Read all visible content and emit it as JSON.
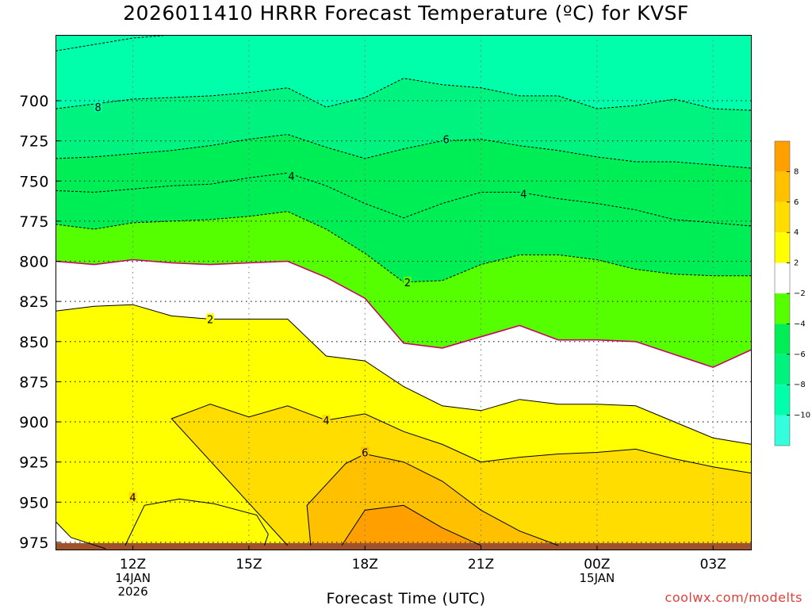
{
  "title": "2026011410 HRRR Forecast Temperature (ºC) for KVSF",
  "xlabel": "Forecast Time (UTC)",
  "watermark": "coolwx.com/modelts",
  "chart_data": {
    "type": "heatmap",
    "title": "2026011410 HRRR Forecast Temperature (ºC) for KVSF",
    "xlabel": "Forecast Time (UTC)",
    "ylabel": "",
    "x_ticks": [
      {
        "hour": 12,
        "lines": [
          "12Z",
          "14JAN",
          "2026"
        ]
      },
      {
        "hour": 15,
        "lines": [
          "15Z"
        ]
      },
      {
        "hour": 18,
        "lines": [
          "18Z"
        ]
      },
      {
        "hour": 21,
        "lines": [
          "21Z"
        ]
      },
      {
        "hour": 24,
        "lines": [
          "00Z",
          "15JAN"
        ]
      },
      {
        "hour": 27,
        "lines": [
          "03Z"
        ]
      }
    ],
    "xlim": [
      10,
      28
    ],
    "y_ticks": [
      700,
      725,
      750,
      775,
      800,
      825,
      850,
      875,
      900,
      925,
      950,
      975
    ],
    "ylim": [
      980,
      659
    ],
    "colorbar": {
      "bands": [
        {
          "from": -12,
          "to": -10,
          "color": "#33ffdd"
        },
        {
          "from": -10,
          "to": -8,
          "color": "#00ffaa"
        },
        {
          "from": -8,
          "to": -6,
          "color": "#00f27f"
        },
        {
          "from": -6,
          "to": -4,
          "color": "#00ee55"
        },
        {
          "from": -4,
          "to": -2,
          "color": "#55ff00"
        },
        {
          "from": -2,
          "to": 2,
          "color": "#ffffff"
        },
        {
          "from": 2,
          "to": 4,
          "color": "#ffff00"
        },
        {
          "from": 4,
          "to": 6,
          "color": "#ffdd00"
        },
        {
          "from": 6,
          "to": 8,
          "color": "#ffc000"
        },
        {
          "from": 8,
          "to": 10,
          "color": "#ff9f00"
        }
      ],
      "tick_labels": [
        "8",
        "6",
        "4",
        "2",
        "−2",
        "−4",
        "−6",
        "−8",
        "−10"
      ]
    },
    "ground_color": "#a0522d",
    "contours": [
      {
        "value": -8,
        "color": "#000000",
        "dashed": true,
        "label": "8",
        "label_at": [
          11.1,
          704
        ],
        "points": [
          [
            10,
            669
          ],
          [
            11,
            665
          ],
          [
            12,
            661
          ],
          [
            13,
            659
          ],
          [
            14,
            659
          ],
          [
            15,
            659
          ],
          [
            16,
            659
          ],
          [
            17,
            659
          ],
          [
            18,
            659
          ],
          [
            19,
            659
          ],
          [
            20,
            659
          ],
          [
            21,
            659
          ],
          [
            22,
            659
          ],
          [
            23,
            659
          ],
          [
            24,
            659
          ],
          [
            25,
            659
          ],
          [
            26,
            659
          ],
          [
            27,
            659
          ],
          [
            28,
            659
          ]
        ]
      },
      {
        "value": -6,
        "color": "#000000",
        "dashed": true,
        "points": [
          [
            10,
            705
          ],
          [
            11,
            702
          ],
          [
            12,
            699
          ],
          [
            13,
            698
          ],
          [
            14,
            697
          ],
          [
            15,
            695
          ],
          [
            16,
            692
          ],
          [
            17,
            704
          ],
          [
            18,
            698
          ],
          [
            19,
            686
          ],
          [
            20,
            690
          ],
          [
            21,
            692
          ],
          [
            22,
            697
          ],
          [
            23,
            697
          ],
          [
            24,
            705
          ],
          [
            25,
            703
          ],
          [
            26,
            699
          ],
          [
            27,
            705
          ],
          [
            28,
            706
          ]
        ]
      },
      {
        "value": -6,
        "color": "#000000",
        "dashed": true,
        "label": "6",
        "label_at": [
          20.1,
          724
        ],
        "points": [
          [
            10,
            736
          ],
          [
            11,
            735
          ],
          [
            12,
            733
          ],
          [
            13,
            731
          ],
          [
            14,
            728
          ],
          [
            15,
            724
          ],
          [
            16,
            721
          ],
          [
            17,
            729
          ],
          [
            18,
            736
          ],
          [
            19,
            730
          ],
          [
            20,
            725
          ],
          [
            21,
            724
          ],
          [
            22,
            728
          ],
          [
            23,
            731
          ],
          [
            24,
            735
          ],
          [
            25,
            738
          ],
          [
            26,
            738
          ],
          [
            27,
            740
          ],
          [
            28,
            742
          ]
        ]
      },
      {
        "value": -4,
        "color": "#000000",
        "dashed": true,
        "label": "4",
        "label_at": [
          16.1,
          747
        ],
        "points": [
          [
            10,
            756
          ],
          [
            11,
            757
          ],
          [
            12,
            755
          ],
          [
            13,
            753
          ],
          [
            14,
            752
          ],
          [
            15,
            748
          ],
          [
            16,
            745
          ],
          [
            17,
            753
          ],
          [
            18,
            764
          ],
          [
            19,
            773
          ],
          [
            20,
            764
          ],
          [
            21,
            757
          ],
          [
            22,
            757
          ],
          [
            23,
            761
          ],
          [
            24,
            764
          ],
          [
            25,
            768
          ],
          [
            26,
            774
          ],
          [
            27,
            776
          ],
          [
            28,
            778
          ]
        ]
      },
      {
        "value": -4,
        "color": "#000000",
        "dashed": true,
        "label": "4",
        "label_at": [
          22.1,
          758
        ],
        "points": [
          [
            10,
            777
          ],
          [
            11,
            780
          ],
          [
            12,
            776
          ],
          [
            13,
            775
          ],
          [
            14,
            774
          ],
          [
            15,
            772
          ],
          [
            16,
            769
          ],
          [
            17,
            780
          ],
          [
            18,
            795
          ],
          [
            19,
            813
          ],
          [
            20,
            812
          ],
          [
            21,
            802
          ],
          [
            22,
            796
          ],
          [
            23,
            796
          ],
          [
            24,
            799
          ],
          [
            25,
            805
          ],
          [
            26,
            808
          ],
          [
            27,
            809
          ],
          [
            28,
            809
          ]
        ]
      },
      {
        "value": -2,
        "color": "#cc0066",
        "dashed": false,
        "label": "2",
        "label_at": [
          19.1,
          813
        ],
        "points": [
          [
            10,
            800
          ],
          [
            11,
            802
          ],
          [
            12,
            799
          ],
          [
            13,
            801
          ],
          [
            14,
            802
          ],
          [
            15,
            801
          ],
          [
            16,
            800
          ],
          [
            17,
            810
          ],
          [
            18,
            823
          ],
          [
            19,
            851
          ],
          [
            20,
            854
          ],
          [
            21,
            847
          ],
          [
            22,
            840
          ],
          [
            23,
            849
          ],
          [
            24,
            849
          ],
          [
            25,
            850
          ],
          [
            26,
            858
          ],
          [
            27,
            866
          ],
          [
            28,
            855
          ]
        ]
      },
      {
        "value": 2,
        "color": "#000000",
        "dashed": false,
        "label": "2",
        "label_at": [
          14.0,
          836
        ],
        "points": [
          [
            10,
            831
          ],
          [
            11,
            828
          ],
          [
            12,
            827
          ],
          [
            13,
            834
          ],
          [
            14,
            836
          ],
          [
            15,
            836
          ],
          [
            16,
            836
          ],
          [
            17,
            859
          ],
          [
            18,
            862
          ],
          [
            19,
            878
          ],
          [
            20,
            890
          ],
          [
            21,
            893
          ],
          [
            22,
            886
          ],
          [
            23,
            889
          ],
          [
            24,
            889
          ],
          [
            25,
            890
          ],
          [
            26,
            900
          ],
          [
            27,
            910
          ],
          [
            28,
            914
          ]
        ]
      },
      {
        "value": 4,
        "color": "#000000",
        "dashed": false,
        "label": "4",
        "label_at": [
          17.0,
          899
        ],
        "points": [
          [
            11.3,
            979
          ],
          [
            10.4,
            972
          ],
          [
            10,
            962
          ],
          [
            10,
            940
          ]
        ]
      },
      {
        "value": 4,
        "color": "#000000",
        "dashed": false,
        "label": "4",
        "label_at": [
          12.0,
          947
        ],
        "points": [
          [
            16,
            977
          ],
          [
            13,
            898
          ],
          [
            14,
            889
          ],
          [
            15,
            897
          ],
          [
            16,
            890
          ],
          [
            17,
            899
          ],
          [
            18,
            895
          ],
          [
            19,
            906
          ],
          [
            20,
            914
          ],
          [
            21,
            925
          ],
          [
            22,
            922
          ],
          [
            23,
            920
          ],
          [
            24,
            919
          ],
          [
            25,
            917
          ],
          [
            26,
            923
          ],
          [
            27,
            928
          ],
          [
            28,
            932
          ]
        ]
      },
      {
        "value": 4,
        "color": "#000000",
        "dashed": false,
        "points": [
          [
            11.8,
            977
          ],
          [
            12.3,
            952
          ],
          [
            13.2,
            948
          ],
          [
            14.1,
            951
          ],
          [
            15.2,
            958
          ],
          [
            15.5,
            970
          ],
          [
            15.4,
            977
          ]
        ]
      },
      {
        "value": 6,
        "color": "#000000",
        "dashed": false,
        "label": "6",
        "label_at": [
          18.0,
          919
        ],
        "points": [
          [
            16.6,
            977
          ],
          [
            16.5,
            952
          ],
          [
            17.5,
            926
          ],
          [
            18,
            920
          ],
          [
            19,
            925
          ],
          [
            20,
            937
          ],
          [
            21,
            955
          ],
          [
            22,
            968
          ],
          [
            23,
            977
          ]
        ]
      },
      {
        "value": 8,
        "color": "#000000",
        "dashed": false,
        "points": [
          [
            17.4,
            977
          ],
          [
            18,
            955
          ],
          [
            19,
            952
          ],
          [
            20,
            966
          ],
          [
            21,
            977
          ]
        ]
      }
    ]
  }
}
